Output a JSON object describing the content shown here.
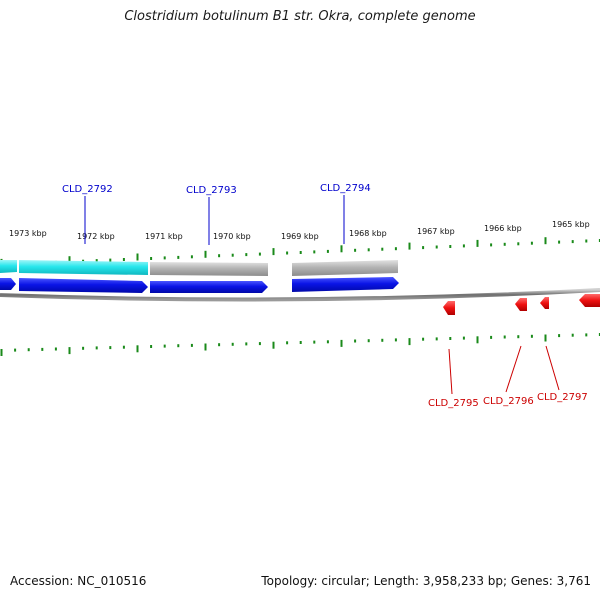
{
  "title": "Clostridium botulinum B1 str. Okra, complete genome",
  "footer": {
    "accession": "Accession: NC_010516",
    "summary": "Topology: circular; Length: 3,958,233 bp; Genes: 3,761"
  },
  "colors": {
    "forward_gene": "#0a14e6",
    "reverse_gene": "#ee1111",
    "cds_cyan": "#27e6ec",
    "cds_gray": "#b4b4b4",
    "backbone": "#6e6e6e",
    "tick": "#1a8a1a",
    "label_forward": "#0000cc",
    "label_reverse": "#cc0000"
  },
  "kbp_labels": [
    "1973 kbp",
    "1972 kbp",
    "1971 kbp",
    "1970 kbp",
    "1969 kbp",
    "1968 kbp",
    "1967 kbp",
    "1966 kbp",
    "1965 kbp"
  ],
  "forward_genes": [
    {
      "name": "CLD_2792"
    },
    {
      "name": "CLD_2793"
    },
    {
      "name": "CLD_2794"
    }
  ],
  "reverse_genes": [
    {
      "name": "CLD_2795"
    },
    {
      "name": "CLD_2796"
    },
    {
      "name": "CLD_2797"
    }
  ]
}
